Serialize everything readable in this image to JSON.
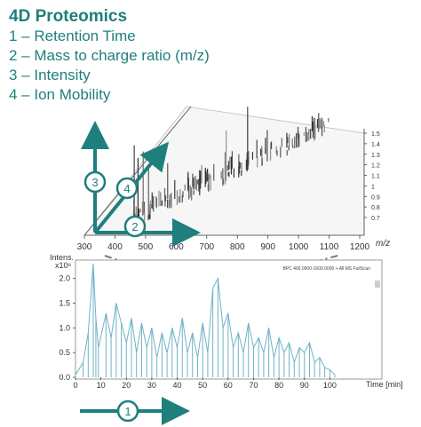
{
  "header": {
    "title": "4D Proteomics",
    "items": [
      "1 – Retention Time",
      "2 – Mass to charge ratio (m/z)",
      "3 – Intensity",
      "4 – Ion Mobility"
    ]
  },
  "colors": {
    "accent": "#1f7f7c",
    "trace": "#6fb3c4",
    "frame": "#999999"
  },
  "chart_data": [
    {
      "type": "surface-3d",
      "title": "",
      "x_label": "m/z",
      "x_ticks": [
        "300",
        "400",
        "500",
        "600",
        "700",
        "800",
        "900",
        "1000",
        "1100",
        "1200"
      ],
      "xlim": [
        300,
        1200
      ],
      "mobility_ticks": [
        "1.5",
        "1.4",
        "1.3",
        "1.2",
        "1.1",
        "1",
        "0.9",
        "0.8",
        "0.7"
      ],
      "axis_badges": [
        "3",
        "4",
        "2"
      ]
    },
    {
      "type": "line",
      "legend": "BPC 400.0000-1600.0000 + All MS FullScan",
      "y_label": "Intens.",
      "y_unit": "x10⁶",
      "y_ticks": [
        "2.0",
        "1.5",
        "1.0",
        "0.5",
        "0.0"
      ],
      "ylim": [
        0,
        2.3
      ],
      "x_ticks": [
        "0",
        "10",
        "20",
        "30",
        "40",
        "50",
        "60",
        "70",
        "80",
        "90",
        "100"
      ],
      "x_label": "Time [min]",
      "xlim": [
        0,
        110
      ],
      "series": [
        {
          "x": [
            0,
            3,
            5,
            7,
            8,
            9,
            12,
            14,
            16,
            18,
            20,
            22,
            24,
            26,
            28,
            30,
            32,
            34,
            36,
            38,
            40,
            42,
            44,
            46,
            48,
            50,
            52,
            54,
            56,
            58,
            60,
            62,
            64,
            66,
            68,
            70,
            72,
            74,
            76,
            78,
            80,
            82,
            84,
            86,
            88,
            90,
            92,
            94,
            96,
            98,
            100,
            102
          ],
          "y": [
            0.05,
            0.3,
            0.9,
            2.3,
            1.2,
            0.6,
            1.3,
            0.8,
            1.5,
            1.1,
            0.7,
            1.2,
            0.5,
            1.1,
            0.6,
            1.0,
            0.4,
            0.9,
            0.5,
            1.0,
            0.6,
            1.2,
            0.5,
            0.9,
            0.4,
            1.1,
            0.5,
            1.8,
            2.0,
            1.0,
            1.3,
            0.6,
            0.9,
            0.5,
            1.1,
            0.6,
            0.8,
            0.5,
            1.0,
            0.4,
            0.8,
            0.5,
            0.7,
            0.3,
            0.6,
            0.5,
            0.7,
            0.3,
            0.4,
            0.2,
            0.15,
            0.05
          ]
        }
      ],
      "time_badge": "1"
    }
  ]
}
